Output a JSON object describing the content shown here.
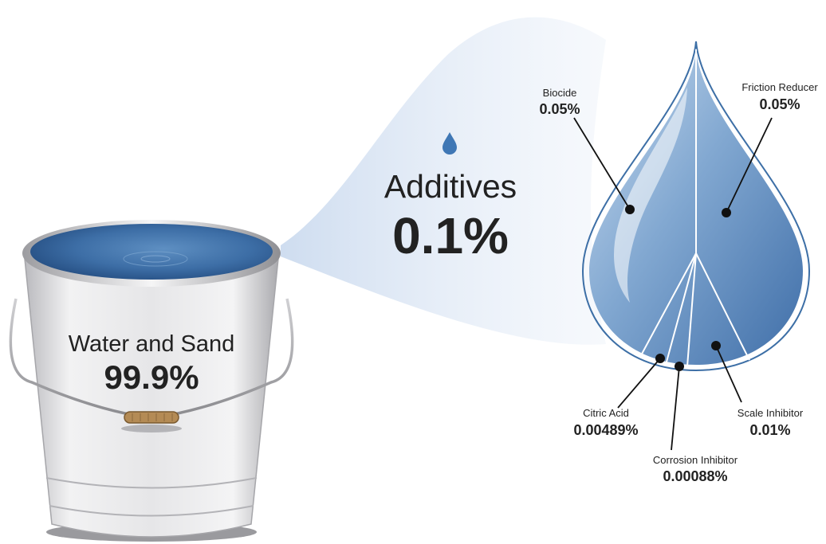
{
  "bucket": {
    "label": "Water and Sand",
    "value": "99.9%"
  },
  "additives": {
    "label": "Additives",
    "value": "0.1%"
  },
  "components": [
    {
      "name": "Biocide",
      "value": "0.05%"
    },
    {
      "name": "Friction Reducer",
      "value": "0.05%"
    },
    {
      "name": "Citric Acid",
      "value": "0.00489%"
    },
    {
      "name": "Corrosion Inhibitor",
      "value": "0.00088%"
    },
    {
      "name": "Scale Inhibitor",
      "value": "0.01%"
    }
  ],
  "colors": {
    "water_dark": "#2f5f95",
    "water_light": "#6d9bc8",
    "drop_outline": "#3d6fa6",
    "beam": "#dbe6f4",
    "bucket_metal": "#e4e4e6"
  }
}
